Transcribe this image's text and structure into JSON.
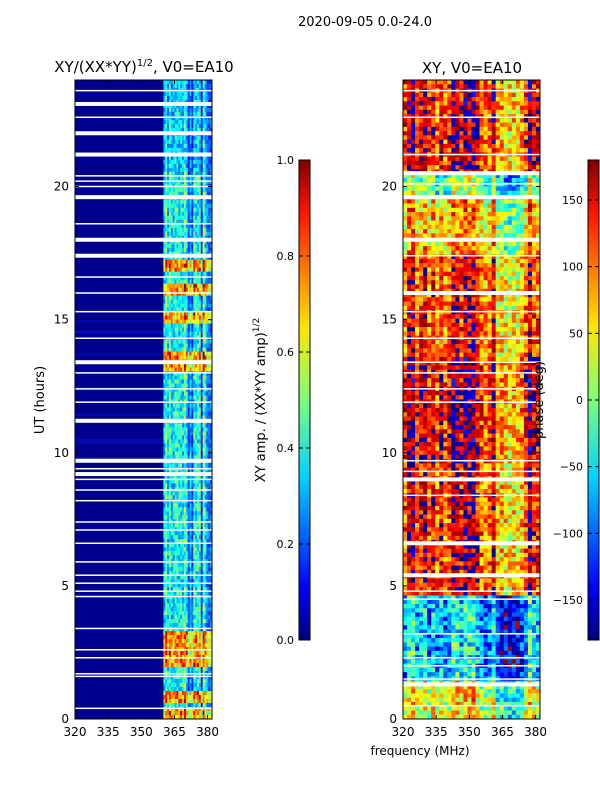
{
  "suptitle": "2020-09-05 0.0-24.0",
  "xlabel_shared": "frequency (MHz)",
  "chart_data": [
    {
      "type": "heatmap",
      "title_main": "XY/(XX*YY)",
      "title_sup": "1/2",
      "title_rest": ", V0=EA10",
      "ylabel": "UT (hours)",
      "xlim": [
        320,
        382
      ],
      "ylim": [
        0,
        24
      ],
      "xticks": [
        320,
        335,
        350,
        365,
        380
      ],
      "yticks": [
        0,
        5,
        10,
        15,
        20
      ],
      "colormap": "jet",
      "colorbar": {
        "label_main": "XY amp. / (XX*YY amp)",
        "label_sup": "1/2",
        "range": [
          0.0,
          1.0
        ],
        "ticks": [
          "0.0",
          "0.2",
          "0.4",
          "0.6",
          "0.8",
          "1.0"
        ],
        "tick_values": [
          0.0,
          0.2,
          0.4,
          0.6,
          0.8,
          1.0
        ]
      },
      "band_start_mhz": 360,
      "gap_hours": [
        0.4,
        1.6,
        1.7,
        2.3,
        2.6,
        3.4,
        4.6,
        4.8,
        5.1,
        5.4,
        5.9,
        6.6,
        7.1,
        7.4,
        8.2,
        8.6,
        9.0,
        9.2,
        9.4,
        9.7,
        11.2,
        11.9,
        12.4,
        13.0,
        13.4,
        14.3,
        15.3,
        16.0,
        16.6,
        17.4,
        18.0,
        18.6,
        19.6,
        20.0,
        20.2,
        20.4,
        21.2,
        22.0,
        22.6,
        23.1,
        23.6
      ],
      "hot_rows_hours": [
        0.2,
        0.8,
        2.2,
        2.6,
        3.0,
        13.3,
        13.6,
        15.1,
        16.1,
        17.0
      ]
    },
    {
      "type": "heatmap",
      "title_main": "XY, V0=EA10",
      "title_sup": "",
      "title_rest": "",
      "ylabel": "",
      "xlim": [
        320,
        382
      ],
      "ylim": [
        0,
        24
      ],
      "xticks": [
        320,
        335,
        350,
        365,
        380
      ],
      "yticks": [
        0,
        5,
        10,
        15,
        20
      ],
      "colormap": "jet",
      "colorbar": {
        "label_main": "phase (deg)",
        "label_sup": "",
        "range": [
          -180,
          180
        ],
        "ticks": [
          "−150",
          "−100",
          "−50",
          "0",
          "50",
          "100",
          "150"
        ],
        "tick_values": [
          -150,
          -100,
          -50,
          0,
          50,
          100,
          150
        ]
      },
      "gap_hours": [
        0.5,
        1.3,
        1.5,
        2.0,
        2.3,
        3.2,
        4.5,
        4.8,
        5.4,
        6.6,
        8.4,
        9.0,
        9.3,
        9.7,
        11.9,
        12.4,
        13.0,
        13.4,
        14.3,
        15.3,
        16.0,
        17.4,
        18.0,
        19.6,
        20.1,
        20.5,
        21.2,
        22.6,
        23.6
      ],
      "phase_bands": [
        {
          "from": 0.0,
          "to": 1.4,
          "phase": 40
        },
        {
          "from": 1.4,
          "to": 4.6,
          "phase": -60
        },
        {
          "from": 4.6,
          "to": 9.6,
          "phase": 130
        },
        {
          "from": 9.6,
          "to": 13.6,
          "phase": 150
        },
        {
          "from": 13.6,
          "to": 17.5,
          "phase": 120
        },
        {
          "from": 17.5,
          "to": 19.5,
          "phase": 70
        },
        {
          "from": 20.5,
          "to": 24.0,
          "phase": 140
        }
      ]
    }
  ]
}
